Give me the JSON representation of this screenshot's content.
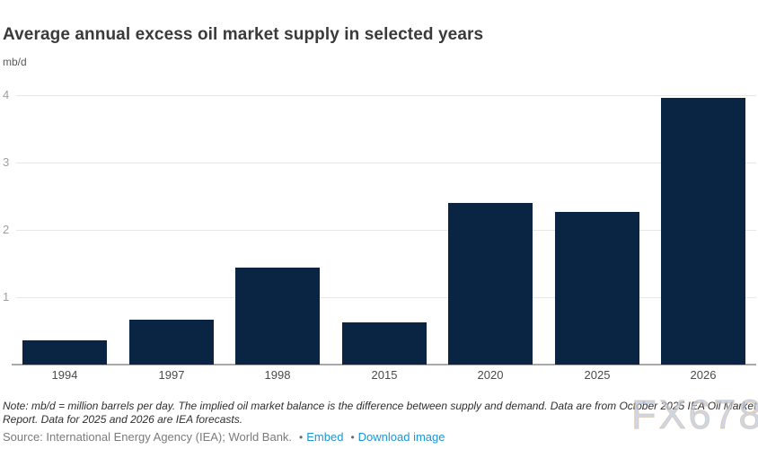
{
  "header": {
    "title": "Average annual excess oil market supply in selected years",
    "units": "mb/d"
  },
  "chart_data": {
    "type": "bar",
    "categories": [
      "1994",
      "1997",
      "1998",
      "2015",
      "2020",
      "2025",
      "2026"
    ],
    "values": [
      0.36,
      0.66,
      1.44,
      0.62,
      2.4,
      2.27,
      3.96
    ],
    "title": "Average annual excess oil market supply in selected years",
    "xlabel": "",
    "ylabel": "mb/d",
    "ylim": [
      0,
      4
    ],
    "yticks": [
      1,
      2,
      3,
      4
    ],
    "grid": true,
    "legend": false,
    "bar_color": "#0a2443",
    "gridline_color": "#e7e7e7",
    "axis_line_color": "#a9a9a9"
  },
  "footer": {
    "note": "Note: mb/d = million barrels per day. The implied oil market balance is the difference between supply and demand. Data are from October 2025 IEA Oil Market Report. Data for 2025 and 2026 are IEA forecasts.",
    "source_label": "Source: International Energy Agency (IEA); World Bank.",
    "bullet": "•",
    "links": [
      {
        "label": "Embed"
      },
      {
        "label": "Download image"
      }
    ]
  },
  "watermark": {
    "text": "FX678"
  },
  "colors": {
    "accent_link": "#1f95d4",
    "bar": "#0a2443",
    "title_text": "#3a3a3a",
    "watermark": "#bbcae2"
  }
}
